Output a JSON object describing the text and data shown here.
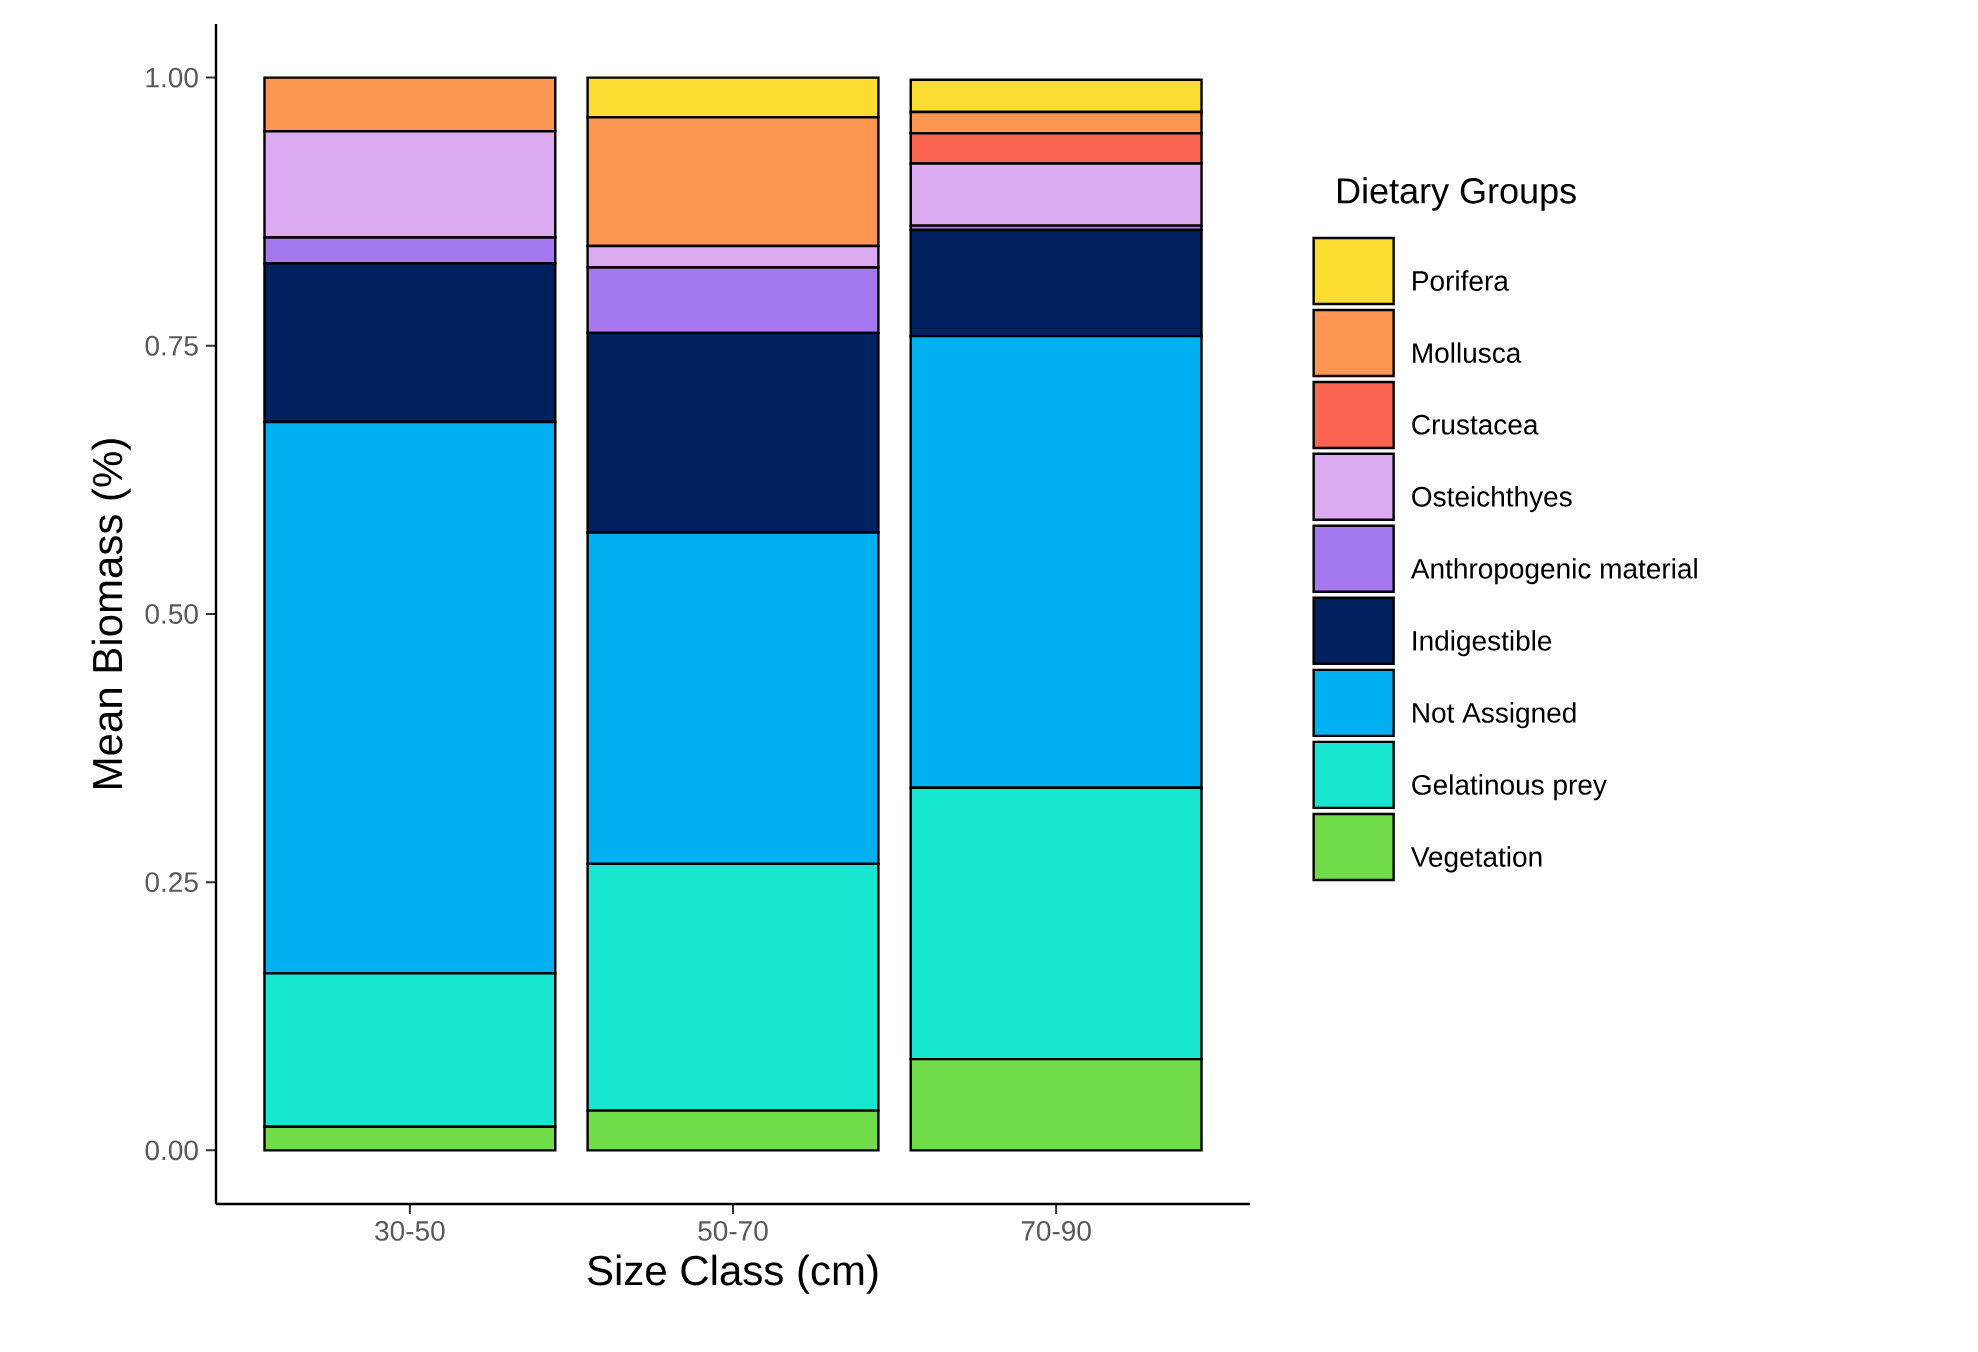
{
  "chart_data": {
    "type": "bar",
    "stacked": true,
    "xlabel": "Size Class (cm)",
    "ylabel": "Mean Biomass (%)",
    "legend_title": "Dietary Groups",
    "legend": "right",
    "categories": [
      "30-50",
      "50-70",
      "70-90"
    ],
    "ylim": [
      -0.05,
      1.05
    ],
    "yticks": [
      {
        "value": 0,
        "label": "0.00"
      },
      {
        "value": 0.25,
        "label": "0.25"
      },
      {
        "value": 0.5,
        "label": "0.50"
      },
      {
        "value": 0.75,
        "label": "0.75"
      },
      {
        "value": 1,
        "label": "1.00"
      }
    ],
    "series": [
      {
        "name": "Vegetation",
        "color": "#70dc4a",
        "values": [
          0.022,
          0.037,
          0.085
        ]
      },
      {
        "name": "Gelatinous prey",
        "color": "#17e6d0",
        "values": [
          0.143,
          0.23,
          0.253
        ]
      },
      {
        "name": "Not Assigned",
        "color": "#00b0f0",
        "values": [
          0.514,
          0.309,
          0.421
        ]
      },
      {
        "name": "Indigestible",
        "color": "#00205f",
        "values": [
          0.148,
          0.186,
          0.099
        ]
      },
      {
        "name": "Anthropogenic material",
        "color": "#a678f0",
        "values": [
          0.024,
          0.061,
          0.004
        ]
      },
      {
        "name": "Osteichthyes",
        "color": "#dcaaf0",
        "values": [
          0.099,
          0.02,
          0.058
        ]
      },
      {
        "name": "Crustacea",
        "color": "#fb6450",
        "values": [
          0,
          0,
          0.028
        ]
      },
      {
        "name": "Mollusca",
        "color": "#fd9650",
        "values": [
          0.05,
          0.12,
          0.02
        ]
      },
      {
        "name": "Porifera",
        "color": "#fddc32",
        "values": [
          0,
          0.037,
          0.03
        ]
      }
    ]
  }
}
